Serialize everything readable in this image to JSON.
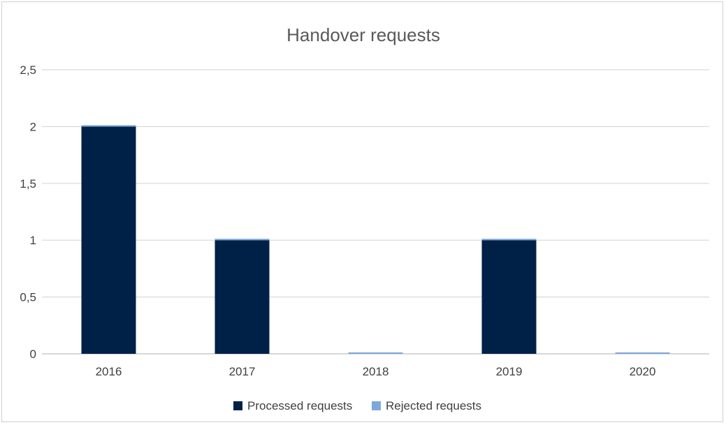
{
  "chart_data": {
    "type": "bar",
    "title": "Handover requests",
    "categories": [
      "2016",
      "2017",
      "2018",
      "2019",
      "2020"
    ],
    "series": [
      {
        "name": "Processed requests",
        "values": [
          2,
          1,
          0,
          1,
          0
        ],
        "color": "#002147"
      },
      {
        "name": "Rejected requests",
        "values": [
          0,
          0,
          0,
          0,
          0
        ],
        "color": "#7da7d9"
      }
    ],
    "y_ticks": [
      "0",
      "0,5",
      "1",
      "1,5",
      "2",
      "2,5"
    ],
    "ylim": [
      0,
      2.5
    ],
    "grid": true,
    "legend": "bottom"
  }
}
